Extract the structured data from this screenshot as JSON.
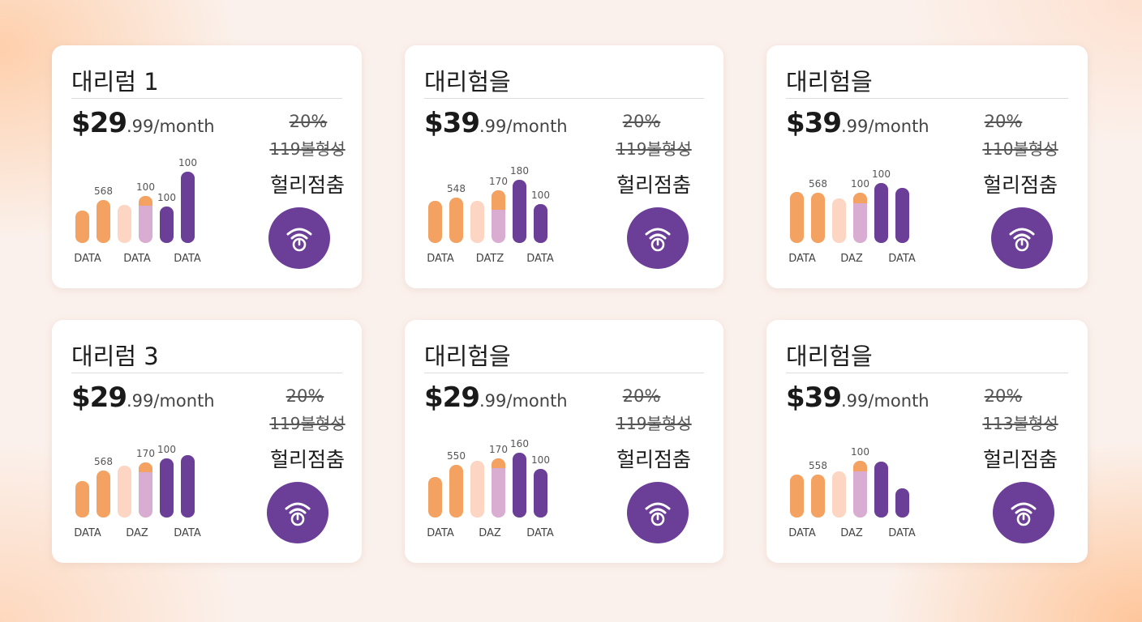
{
  "colors": {
    "orange": "#f4a261",
    "peach": "#fdd5c3",
    "lilac": "#d9add2",
    "purple": "#6b3f97",
    "button": "#6b3f97"
  },
  "cards": [
    {
      "title": "대리럼 1",
      "price_main": "$29",
      "price_rest": ".99/month",
      "discount": "20%",
      "original": "119불형성",
      "label": "헐리점춤",
      "icon": "wifi-power-icon",
      "chart_data": {
        "type": "bar",
        "categories": [
          "DATA",
          "DATA",
          "DATA"
        ],
        "bars": [
          {
            "value": 40,
            "color": "orange"
          },
          {
            "value": 53,
            "color": "orange",
            "label": "568"
          },
          {
            "value": 47,
            "color": "peach"
          },
          {
            "value": 58,
            "color": "lilac",
            "cap": 12,
            "label": "100"
          },
          {
            "value": 45,
            "color": "purple",
            "label": "100"
          },
          {
            "value": 88,
            "color": "purple",
            "label": "100"
          }
        ]
      }
    },
    {
      "title": "대리험을",
      "price_main": "$39",
      "price_rest": ".99/month",
      "discount": "20%",
      "original": "119불형성",
      "label": "헐리점춤",
      "icon": "wifi-power-icon",
      "chart_data": {
        "type": "bar",
        "categories": [
          "DATA",
          "DATZ",
          "DATA"
        ],
        "bars": [
          {
            "value": 52,
            "color": "orange"
          },
          {
            "value": 56,
            "color": "orange",
            "label": "548"
          },
          {
            "value": 52,
            "color": "peach"
          },
          {
            "value": 65,
            "color": "lilac",
            "cap": 24,
            "label": "170"
          },
          {
            "value": 78,
            "color": "purple",
            "label": "180"
          },
          {
            "value": 48,
            "color": "purple",
            "label": "100"
          }
        ]
      }
    },
    {
      "title": "대리험을",
      "price_main": "$39",
      "price_rest": ".99/month",
      "discount": "20%",
      "original": "110불형성",
      "label": "헐리점춤",
      "icon": "wifi-power-icon",
      "chart_data": {
        "type": "bar",
        "categories": [
          "DATA",
          "DAZ",
          "DATA"
        ],
        "bars": [
          {
            "value": 63,
            "color": "orange"
          },
          {
            "value": 62,
            "color": "orange",
            "label": "568"
          },
          {
            "value": 55,
            "color": "peach"
          },
          {
            "value": 62,
            "color": "lilac",
            "cap": 13,
            "label": "100"
          },
          {
            "value": 74,
            "color": "purple",
            "label": "100"
          },
          {
            "value": 68,
            "color": "purple"
          }
        ]
      }
    },
    {
      "title": "대리럼 3",
      "price_main": "$29",
      "price_rest": ".99/month",
      "discount": "20%",
      "original": "119불형성",
      "label": "헐리점춤",
      "icon": "wifi-power-icon",
      "chart_data": {
        "type": "bar",
        "categories": [
          "DATA",
          "DAZ",
          "DATA"
        ],
        "bars": [
          {
            "value": 45,
            "color": "orange"
          },
          {
            "value": 58,
            "color": "orange",
            "label": "568"
          },
          {
            "value": 64,
            "color": "peach"
          },
          {
            "value": 68,
            "color": "lilac",
            "cap": 12,
            "label": "170"
          },
          {
            "value": 73,
            "color": "purple",
            "label": "100"
          },
          {
            "value": 77,
            "color": "purple"
          }
        ]
      }
    },
    {
      "title": "대리험을",
      "price_main": "$29",
      "price_rest": ".99/month",
      "discount": "20%",
      "original": "119불형성",
      "label": "헐리점춤",
      "icon": "wifi-power-icon",
      "chart_data": {
        "type": "bar",
        "categories": [
          "DATA",
          "DAZ",
          "DATA"
        ],
        "bars": [
          {
            "value": 50,
            "color": "orange"
          },
          {
            "value": 65,
            "color": "orange",
            "label": "550"
          },
          {
            "value": 70,
            "color": "peach"
          },
          {
            "value": 73,
            "color": "lilac",
            "cap": 12,
            "label": "170"
          },
          {
            "value": 80,
            "color": "purple",
            "label": "160"
          },
          {
            "value": 60,
            "color": "purple",
            "label": "100"
          }
        ]
      }
    },
    {
      "title": "대리험을",
      "price_main": "$39",
      "price_rest": ".99/month",
      "discount": "20%",
      "original": "113불형성",
      "label": "헐리점춤",
      "icon": "wifi-power-icon",
      "chart_data": {
        "type": "bar",
        "categories": [
          "DATA",
          "DAZ",
          "DATA"
        ],
        "bars": [
          {
            "value": 53,
            "color": "orange"
          },
          {
            "value": 53,
            "color": "orange",
            "label": "558"
          },
          {
            "value": 57,
            "color": "peach"
          },
          {
            "value": 70,
            "color": "lilac",
            "cap": 13,
            "label": "100"
          },
          {
            "value": 69,
            "color": "purple"
          },
          {
            "value": 36,
            "color": "purple"
          }
        ]
      }
    }
  ]
}
